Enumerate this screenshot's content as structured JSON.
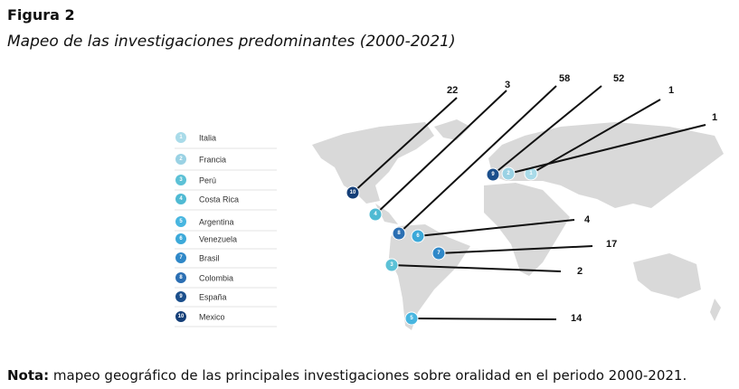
{
  "header": {
    "label": "Figura 2",
    "title": "Mapeo de las investigaciones predominantes (2000-2021)"
  },
  "legend": [
    {
      "number": "1",
      "name": "Italia",
      "color": "#a9dbe9",
      "count": 1
    },
    {
      "number": "2",
      "name": "Francia",
      "color": "#9ad2e4",
      "count": 1
    },
    {
      "number": "3",
      "name": "Perú",
      "color": "#5cc1d6",
      "count": 2
    },
    {
      "number": "4",
      "name": "Costa Rica",
      "color": "#4fbad3",
      "count": 3
    },
    {
      "number": "5",
      "name": "Argentina",
      "color": "#48b6e0",
      "count": 14
    },
    {
      "number": "6",
      "name": "Venezuela",
      "color": "#3ca9d9",
      "count": 4
    },
    {
      "number": "7",
      "name": "Brasil",
      "color": "#2f88c8",
      "count": 17
    },
    {
      "number": "8",
      "name": "Colombia",
      "color": "#2b6fb3",
      "count": 58
    },
    {
      "number": "9",
      "name": "España",
      "color": "#1b4f8c",
      "count": 52
    },
    {
      "number": "10",
      "name": "Mexico",
      "color": "#153f78",
      "count": 22
    }
  ],
  "note": {
    "label": "Nota:",
    "text": " mapeo geográfico de las principales investigaciones sobre oralidad en el periodo 2000-2021."
  }
}
